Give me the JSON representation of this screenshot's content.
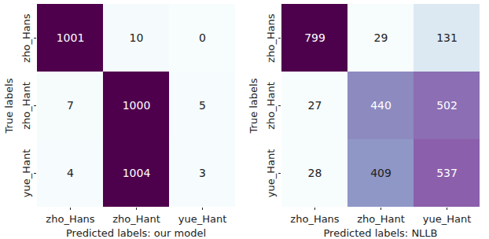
{
  "chart_data": [
    {
      "type": "heatmap",
      "x_categories": [
        "zho_Hans",
        "zho_Hant",
        "yue_Hant"
      ],
      "y_categories": [
        "zho_Hans",
        "zho_Hant",
        "yue_Hant"
      ],
      "cells": [
        [
          1001,
          10,
          0
        ],
        [
          7,
          1000,
          5
        ],
        [
          4,
          1004,
          3
        ]
      ],
      "xlabel": "Predicted labels: our model",
      "ylabel": "True labels",
      "color": "bupu",
      "data_labels": true
    },
    {
      "type": "heatmap",
      "x_categories": [
        "zho_Hans",
        "zho_Hant",
        "yue_Hant"
      ],
      "y_categories": [
        "zho_Hans",
        "zho_Hant",
        "yue_Hant"
      ],
      "cells": [
        [
          799,
          29,
          131
        ],
        [
          27,
          440,
          502
        ],
        [
          28,
          409,
          537
        ]
      ],
      "xlabel": "Predicted labels: NLLB",
      "ylabel": "True labels",
      "color": "bupu",
      "data_labels": true
    }
  ]
}
